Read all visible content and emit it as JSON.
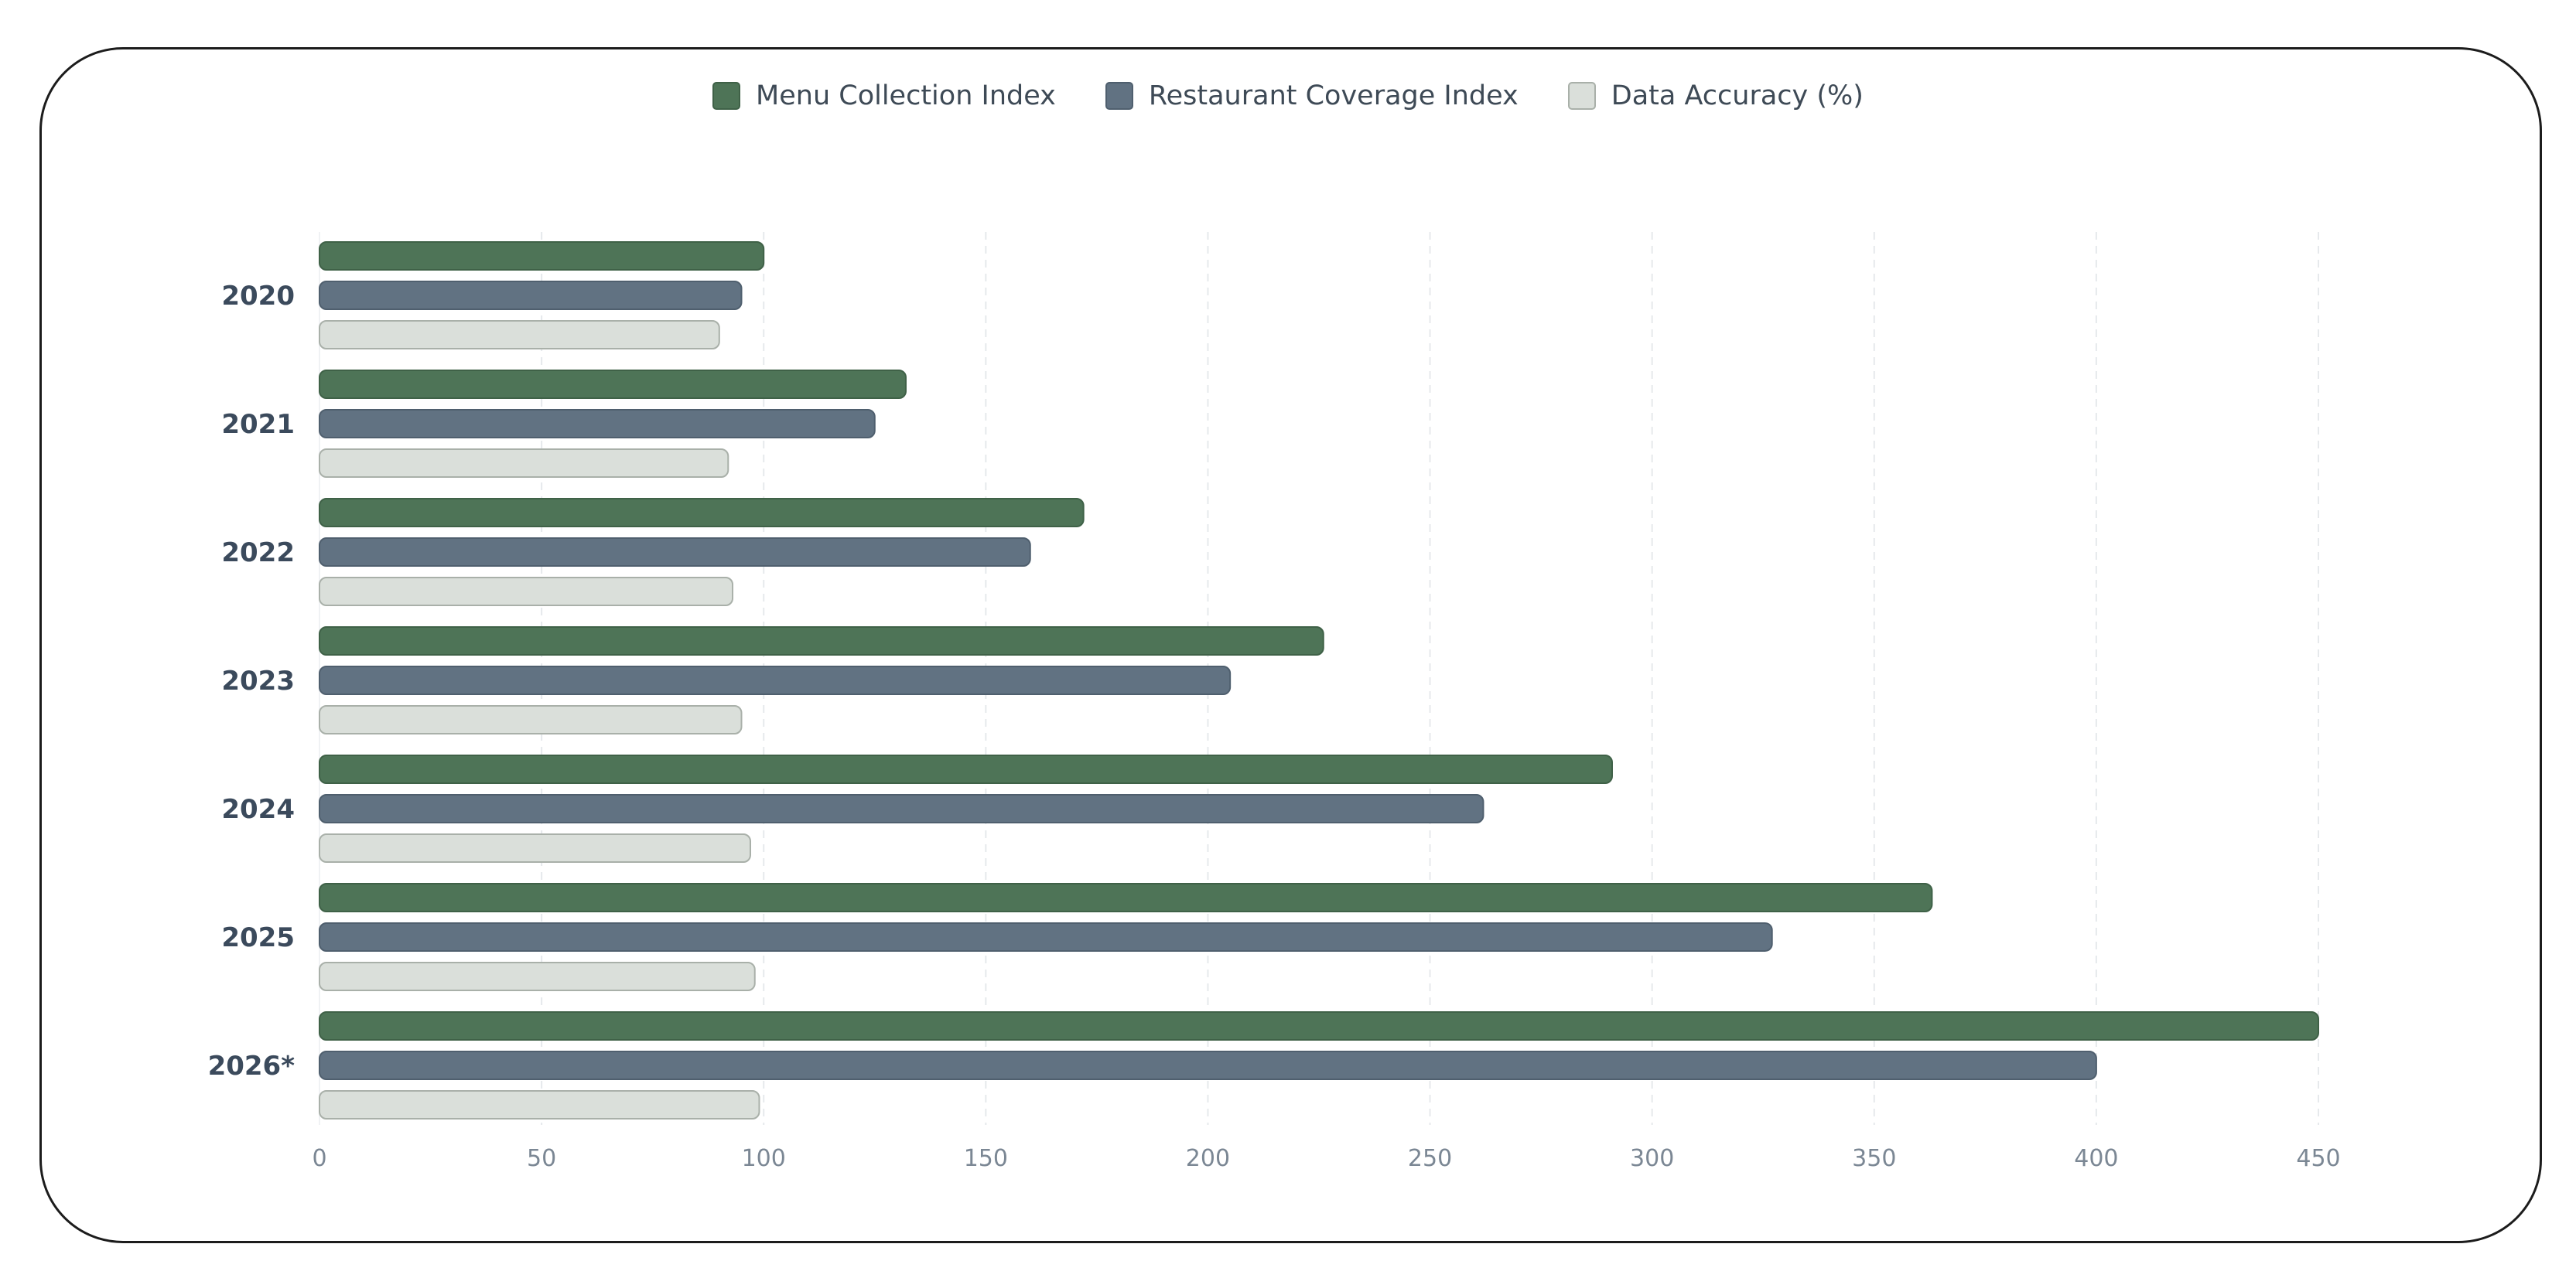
{
  "chart_data": {
    "type": "bar",
    "orientation": "horizontal",
    "categories": [
      "2020",
      "2021",
      "2022",
      "2023",
      "2024",
      "2025",
      "2026*"
    ],
    "series": [
      {
        "name": "Menu Collection Index",
        "color": "#4e7457",
        "values": [
          100,
          132,
          172,
          226,
          291,
          363,
          450
        ]
      },
      {
        "name": "Restaurant Coverage Index",
        "color": "#617282",
        "values": [
          95,
          125,
          160,
          205,
          262,
          327,
          400
        ]
      },
      {
        "name": "Data Accuracy (%)",
        "color": "#dadfda",
        "values": [
          90,
          92,
          93,
          95,
          97,
          98,
          99
        ]
      }
    ],
    "xlim": [
      0,
      450
    ],
    "xticks": [
      "0",
      "50",
      "100",
      "150",
      "200",
      "250",
      "300",
      "350",
      "400",
      "450"
    ],
    "grid": "vertical dashed",
    "legend": "top-center"
  }
}
